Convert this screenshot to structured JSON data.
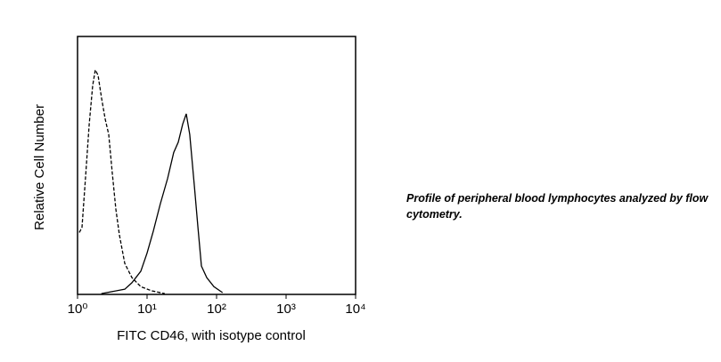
{
  "chart_data": {
    "type": "line",
    "xscale": "log",
    "xlabel": "FITC CD46, with isotype control",
    "ylabel": "Relative Cell Number",
    "annotation": "Profile of peripheral blood lymphocytes analyzed by flow cytometry.",
    "xlim": [
      1,
      10000
    ],
    "ylim": [
      0,
      100
    ],
    "grid": false,
    "xticks": [
      {
        "value": 1,
        "label": "10⁰"
      },
      {
        "value": 10,
        "label": "10¹"
      },
      {
        "value": 100,
        "label": "10²"
      },
      {
        "value": 1000,
        "label": "10³"
      },
      {
        "value": 10000,
        "label": "10⁴"
      }
    ],
    "series": [
      {
        "color": "#000000",
        "dash": true,
        "x": [
          1.06,
          1.16,
          1.3,
          1.47,
          1.65,
          1.8,
          1.97,
          2.22,
          2.5,
          2.81,
          3.16,
          3.56,
          4.0,
          4.78,
          6.05,
          8.13,
          11.6,
          18.0
        ],
        "values": [
          24,
          26,
          45,
          66,
          81,
          87,
          85,
          76,
          68,
          62,
          47,
          33,
          23,
          12,
          6.5,
          3,
          1.4,
          0.3
        ]
      },
      {
        "color": "#000000",
        "dash": false,
        "x": [
          2.2,
          4.78,
          6.05,
          8.13,
          10,
          12.3,
          15.5,
          19.8,
          24.2,
          28.1,
          32.6,
          36.6,
          41.1,
          47.9,
          53.9,
          60.5,
          72.2,
          91.4,
          122
        ],
        "values": [
          0.3,
          2,
          4.5,
          9,
          16,
          24.5,
          35,
          45,
          55,
          59,
          66,
          70,
          62,
          42,
          26,
          11,
          6.5,
          3,
          0.7
        ]
      }
    ]
  }
}
